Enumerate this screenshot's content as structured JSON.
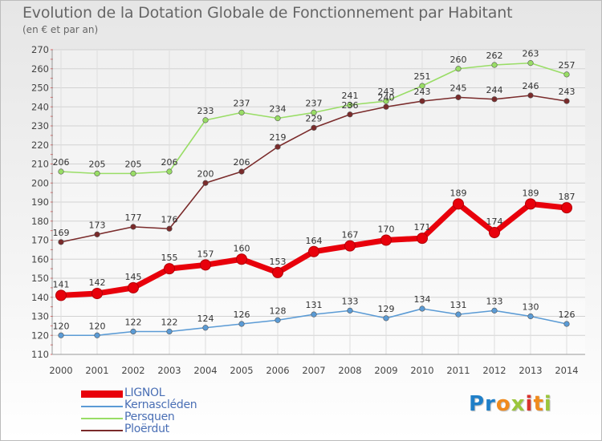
{
  "title": "Evolution de la Dotation Globale de Fonctionnement par Habitant",
  "subtitle": "(en € et par an)",
  "logo_text": "Proxiti",
  "chart_data": {
    "type": "line",
    "title": "Evolution de la Dotation Globale de Fonctionnement par Habitant",
    "subtitle": "(en € et par an)",
    "xlabel": "",
    "ylabel": "",
    "x": [
      "2000",
      "2001",
      "2002",
      "2003",
      "2004",
      "2005",
      "2006",
      "2007",
      "2008",
      "2009",
      "2010",
      "2011",
      "2012",
      "2013",
      "2014"
    ],
    "ylim": [
      110,
      270
    ],
    "yticks": [
      110,
      120,
      130,
      140,
      150,
      160,
      170,
      180,
      190,
      200,
      210,
      220,
      230,
      240,
      250,
      260,
      270
    ],
    "grid": true,
    "legend_position": "bottom-left",
    "series": [
      {
        "name": "LIGNOL",
        "color": "#e8000b",
        "values": [
          141,
          142,
          145,
          155,
          157,
          160,
          153,
          164,
          167,
          170,
          171,
          189,
          174,
          189,
          187
        ]
      },
      {
        "name": "Kernascléden",
        "color": "#5b9bd5",
        "values": [
          120,
          120,
          122,
          122,
          124,
          126,
          128,
          131,
          133,
          129,
          134,
          131,
          133,
          130,
          126
        ]
      },
      {
        "name": "Persquen",
        "color": "#99dd66",
        "values": [
          206,
          205,
          205,
          206,
          233,
          237,
          234,
          237,
          241,
          243,
          251,
          260,
          262,
          263,
          257
        ]
      },
      {
        "name": "Ploërdut",
        "color": "#7a2b2b",
        "values": [
          169,
          173,
          177,
          176,
          200,
          206,
          219,
          229,
          236,
          240,
          243,
          245,
          244,
          246,
          243
        ]
      }
    ]
  }
}
